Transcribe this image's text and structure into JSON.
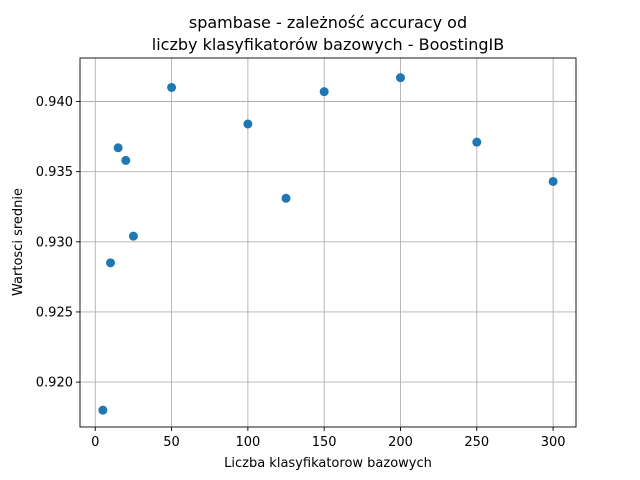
{
  "chart_data": {
    "type": "scatter",
    "title": [
      "spambase - zależność accuracy od",
      "liczby klasyfikatorów bazowych - BoostingIB"
    ],
    "xlabel": "Liczba klasyfikatorow bazowych",
    "ylabel": "Wartosci srednie",
    "xlim": [
      -10,
      315
    ],
    "ylim": [
      0.9168,
      0.9431
    ],
    "xticks": [
      0,
      50,
      100,
      150,
      200,
      250,
      300
    ],
    "yticks": [
      0.92,
      0.925,
      0.93,
      0.935,
      0.94
    ],
    "ytick_labels": [
      "0.920",
      "0.925",
      "0.930",
      "0.935",
      "0.940"
    ],
    "grid": true,
    "color": "#1f77b4",
    "points": [
      {
        "x": 5,
        "y": 0.918
      },
      {
        "x": 10,
        "y": 0.9285
      },
      {
        "x": 15,
        "y": 0.9367
      },
      {
        "x": 20,
        "y": 0.9358
      },
      {
        "x": 25,
        "y": 0.9304
      },
      {
        "x": 50,
        "y": 0.941
      },
      {
        "x": 100,
        "y": 0.9384
      },
      {
        "x": 125,
        "y": 0.9331
      },
      {
        "x": 150,
        "y": 0.9407
      },
      {
        "x": 200,
        "y": 0.9417
      },
      {
        "x": 250,
        "y": 0.9371
      },
      {
        "x": 300,
        "y": 0.9343
      }
    ]
  }
}
